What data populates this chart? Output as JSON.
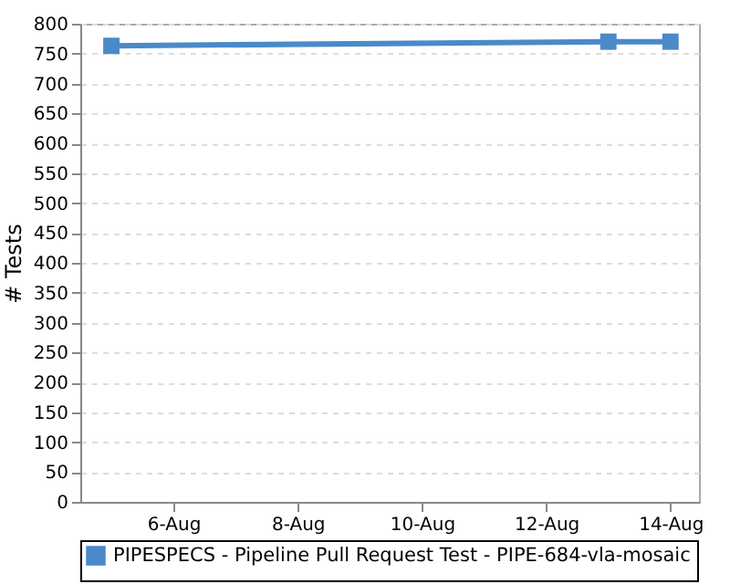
{
  "chart_data": {
    "type": "line",
    "ylabel": "# Tests",
    "x": [
      "--08-05",
      "--08-13",
      "--08-14"
    ],
    "series": [
      {
        "name": "PIPESPECS - Pipeline Pull Request Test - PIPE-684-vla-mosaic",
        "color": "#4a8ac9",
        "values": [
          763,
          770,
          770
        ]
      }
    ],
    "xlim": [
      "--08-04T12:00",
      "--08-14T11:00"
    ],
    "xticks": [
      {
        "value": "--08-06",
        "label": "6-Aug"
      },
      {
        "value": "--08-08",
        "label": "8-Aug"
      },
      {
        "value": "--08-10",
        "label": "10-Aug"
      },
      {
        "value": "--08-12",
        "label": "12-Aug"
      },
      {
        "value": "--08-14",
        "label": "14-Aug"
      }
    ],
    "ylim": [
      0,
      800
    ],
    "yticks": [
      0,
      50,
      100,
      150,
      200,
      250,
      300,
      350,
      400,
      450,
      500,
      550,
      600,
      650,
      700,
      750,
      800
    ],
    "grid": "y",
    "legend": "bottom",
    "marker": "square",
    "line_style": "solid"
  }
}
